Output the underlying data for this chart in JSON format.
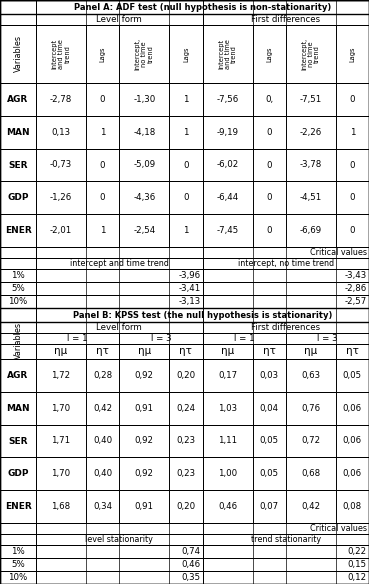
{
  "panel_a_title": "Panel A: ADF test (null hypothesis is non-stationarity)",
  "panel_b_title": "Panel B: KPSS test (the null hypothesis is stationarity)",
  "adf_variables": [
    "AGR",
    "MAN",
    "SER",
    "GDP",
    "ENER"
  ],
  "adf_data": [
    [
      "-2,78",
      "0",
      "-1,30",
      "1",
      "-7,56",
      "0,",
      "-7,51",
      "0"
    ],
    [
      "0,13",
      "1",
      "-4,18",
      "1",
      "-9,19",
      "0",
      "-2,26",
      "1"
    ],
    [
      "-0,73",
      "0",
      "-5,09",
      "0",
      "-6,02",
      "0",
      "-3,78",
      "0"
    ],
    [
      "-1,26",
      "0",
      "-4,36",
      "0",
      "-6,44",
      "0",
      "-4,51",
      "0"
    ],
    [
      "-2,01",
      "1",
      "-2,54",
      "1",
      "-7,45",
      "0",
      "-6,69",
      "0"
    ]
  ],
  "adf_col_headers": [
    "Intercept\nand time\ntrend",
    "Lags",
    "Intercept,\nno time\ntrend",
    "Lags",
    "Intercept\nand time\ntrend",
    "Lags",
    "Intercept,\nno time\ntrend",
    "Lags"
  ],
  "adf_level_form": "Level form",
  "adf_first_diff": "First differences",
  "adf_critical_label1": "intercept and time trend",
  "adf_critical_label2": "intercept, no time trend",
  "adf_critical_values": [
    [
      "1%",
      "-3,96",
      "-3,43"
    ],
    [
      "5%",
      "-3,41",
      "-2,86"
    ],
    [
      "10%",
      "-3,13",
      "-2,57"
    ]
  ],
  "kpss_variables": [
    "AGR",
    "MAN",
    "SER",
    "GDP",
    "ENER"
  ],
  "kpss_data": [
    [
      "1,72",
      "0,28",
      "0,92",
      "0,20",
      "0,17",
      "0,03",
      "0,63",
      "0,05"
    ],
    [
      "1,70",
      "0,42",
      "0,91",
      "0,24",
      "1,03",
      "0,04",
      "0,76",
      "0,06"
    ],
    [
      "1,71",
      "0,40",
      "0,92",
      "0,23",
      "1,11",
      "0,05",
      "0,72",
      "0,06"
    ],
    [
      "1,70",
      "0,40",
      "0,92",
      "0,23",
      "1,00",
      "0,05",
      "0,68",
      "0,06"
    ],
    [
      "1,68",
      "0,34",
      "0,91",
      "0,20",
      "0,46",
      "0,07",
      "0,42",
      "0,08"
    ]
  ],
  "kpss_level_form": "Level form",
  "kpss_first_diff": "First differences",
  "kpss_l_headers": [
    "l = 1",
    "l = 3",
    "l = 1",
    "l = 3"
  ],
  "kpss_eta_headers": [
    "ημ",
    "ητ",
    "ημ",
    "ητ",
    "ημ",
    "ητ",
    "ημ",
    "ητ"
  ],
  "kpss_critical_label1": "level stationarity",
  "kpss_critical_label2": "trend stationarity",
  "kpss_critical_values": [
    [
      "1%",
      "0,74",
      "0,22"
    ],
    [
      "5%",
      "0,46",
      "0,15"
    ],
    [
      "10%",
      "0,35",
      "0,12"
    ]
  ],
  "lc": "#000000",
  "tc": "#000000"
}
